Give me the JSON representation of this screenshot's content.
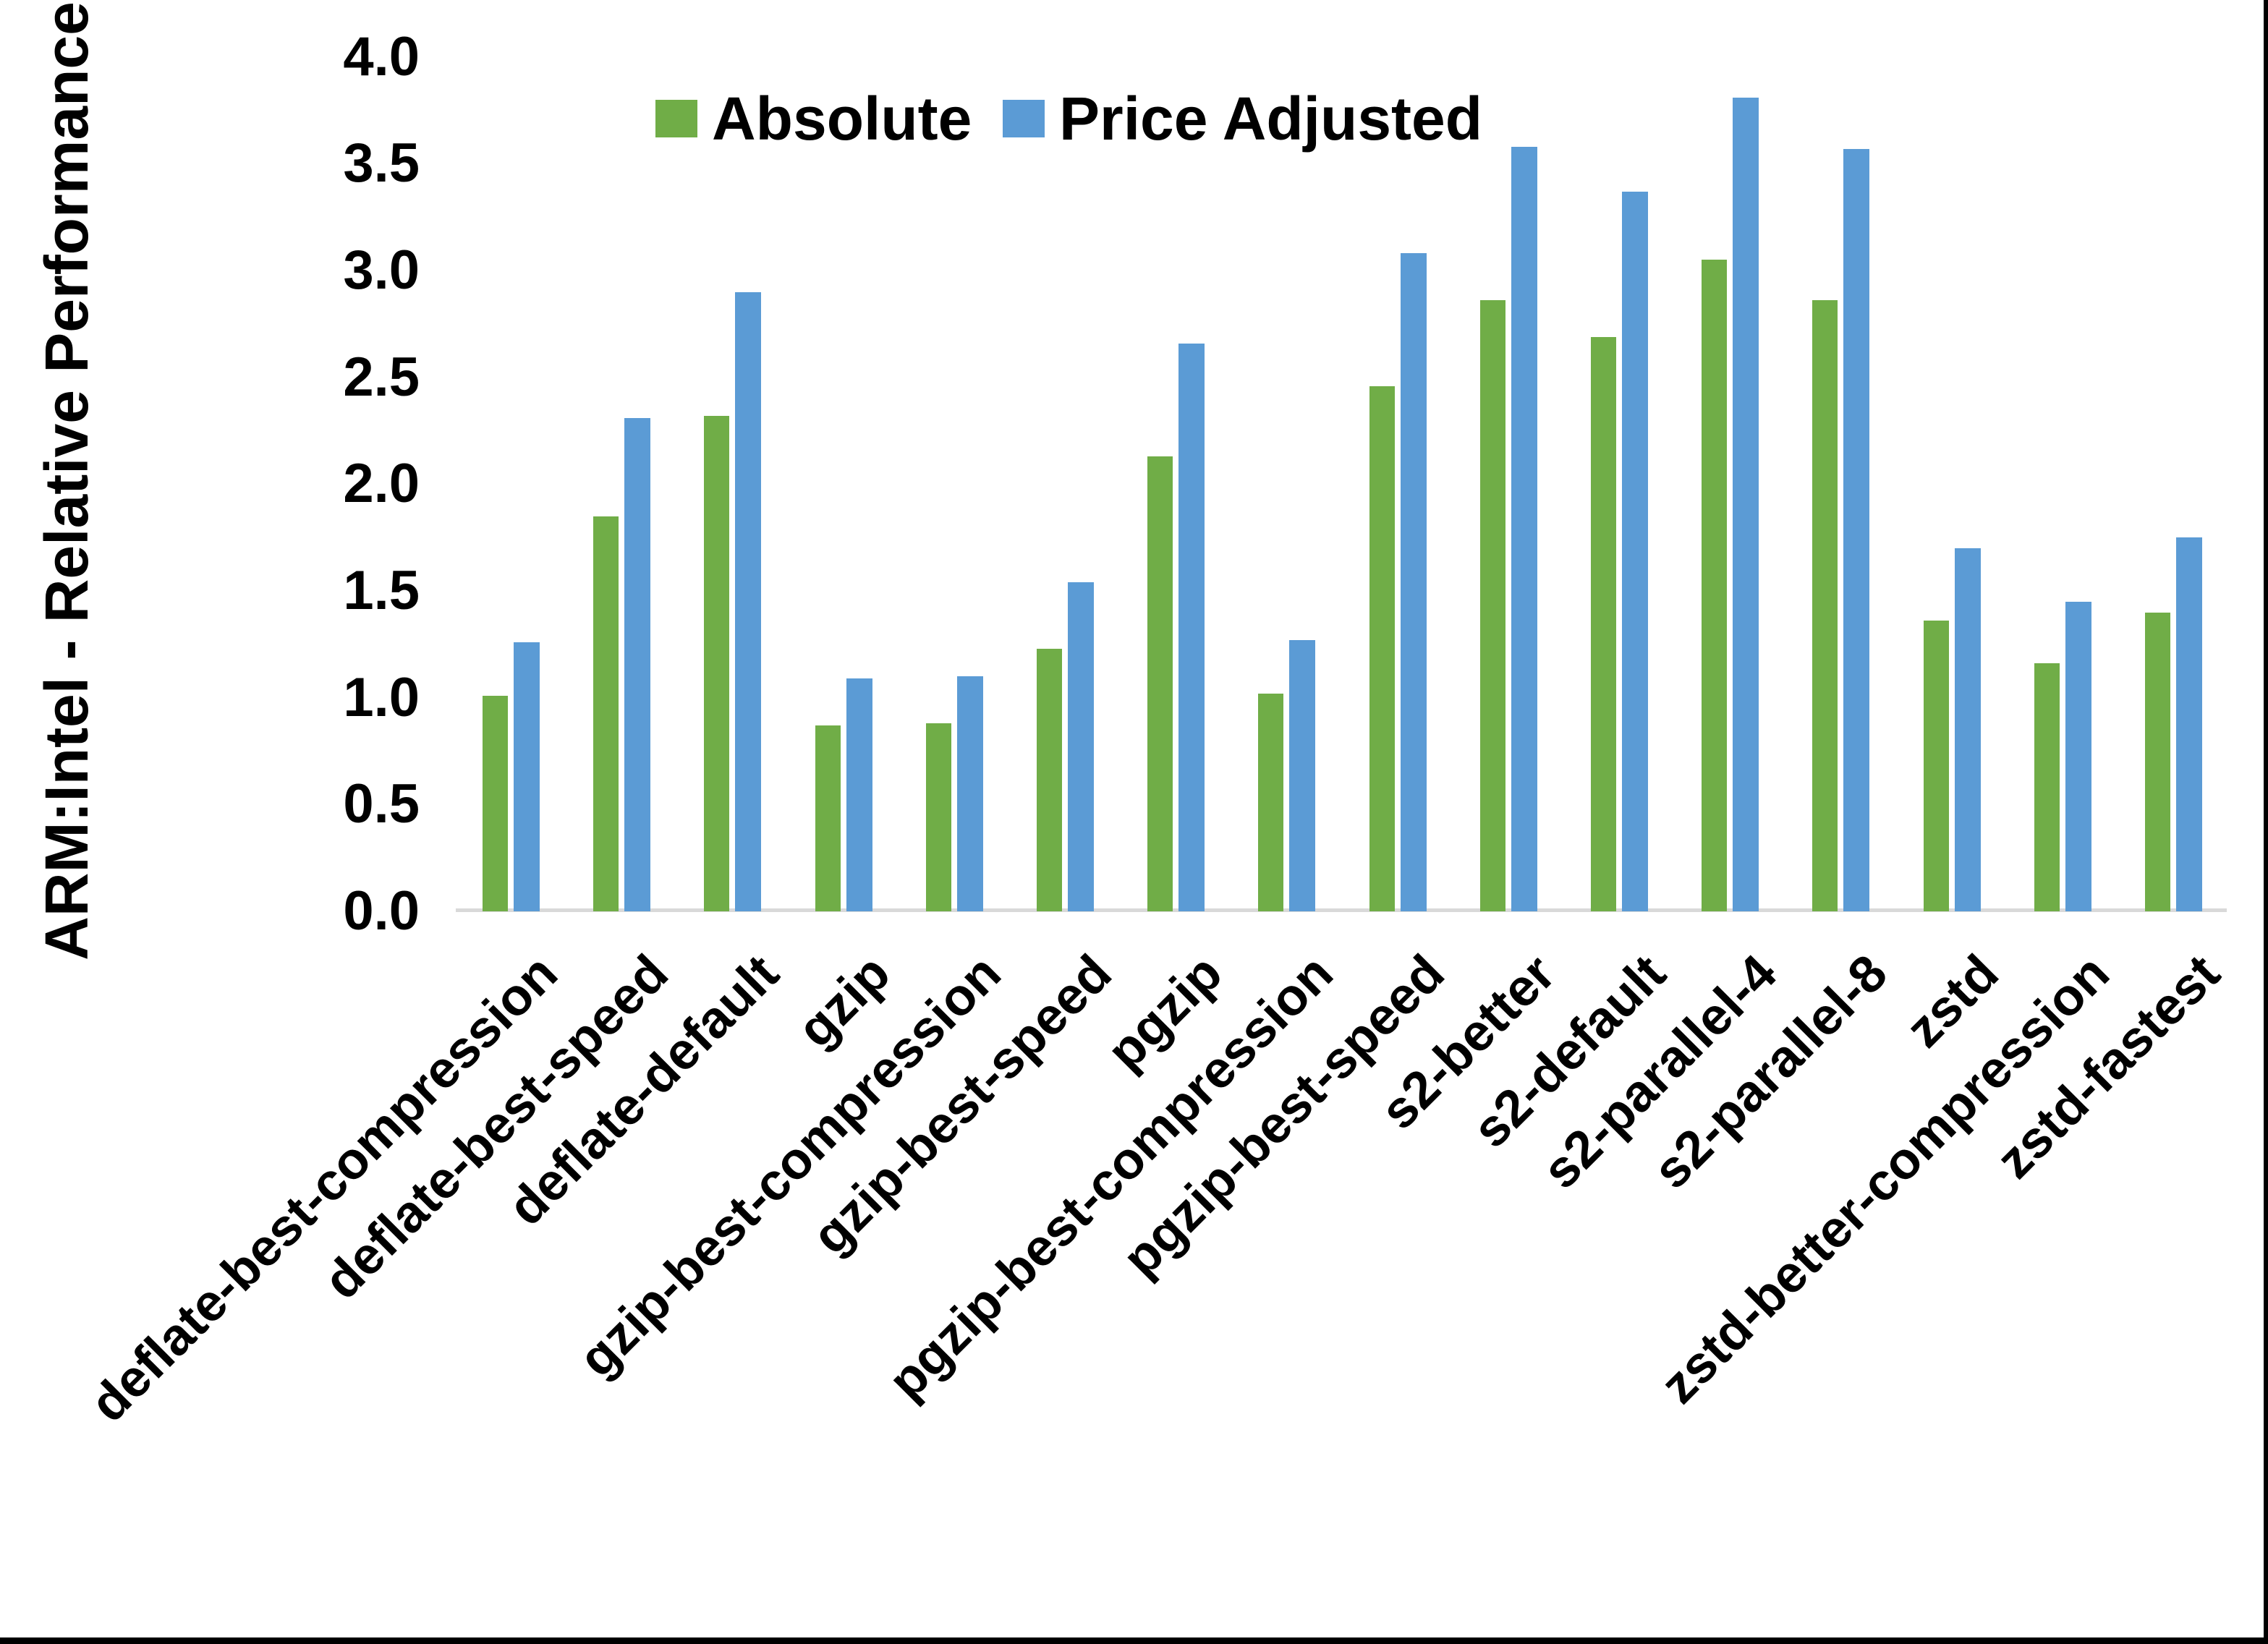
{
  "chart_data": {
    "type": "bar",
    "title": "",
    "xlabel": "",
    "ylabel": "ARM:Intel - Relative Performance",
    "ylim": [
      0.0,
      4.0
    ],
    "ytick_step": 0.5,
    "ytick_decimals": 1,
    "grid": false,
    "legend_position": "top-center",
    "categories": [
      "deflate-best-compression",
      "deflate-best-speed",
      "deflate-default",
      "gzip",
      "gzip-best-compression",
      "gzip-best-speed",
      "pgzip",
      "pgzip-best-compression",
      "pgzip-best-speed",
      "s2-better",
      "s2-default",
      "s2-parallel-4",
      "s2-parallel-8",
      "zstd",
      "zstd-better-compression",
      "zstd-fastest"
    ],
    "series": [
      {
        "name": "Absolute",
        "color": "#70AD47",
        "values": [
          1.01,
          1.85,
          2.32,
          0.87,
          0.88,
          1.23,
          2.13,
          1.02,
          2.46,
          2.86,
          2.69,
          3.05,
          2.86,
          1.36,
          1.16,
          1.4
        ]
      },
      {
        "name": "Price Adjusted",
        "color": "#5B9BD5",
        "values": [
          1.26,
          2.31,
          2.9,
          1.09,
          1.1,
          1.54,
          2.66,
          1.27,
          3.08,
          3.58,
          3.37,
          3.81,
          3.57,
          1.7,
          1.45,
          1.75
        ]
      }
    ]
  },
  "colors": {
    "background": "#FFFFFF",
    "axis_line": "#D9D9D9",
    "text": "#000000",
    "frame_border": "#000000"
  }
}
